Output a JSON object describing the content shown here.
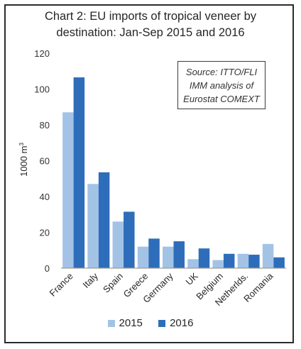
{
  "chart_data": {
    "type": "bar",
    "title": "Chart 2: EU imports of tropical veneer by destination: Jan-Sep 2015 and 2016",
    "title_lines": [
      "Chart 2: EU imports of tropical veneer by",
      "destination: Jan-Sep 2015 and 2016"
    ],
    "ylabel": "1000 m",
    "ylabel_superscript": "3",
    "xlabel": "",
    "ylim": [
      0,
      120
    ],
    "yticks": [
      0,
      20,
      40,
      60,
      80,
      100,
      120
    ],
    "categories": [
      "France",
      "Italy",
      "Spain",
      "Greece",
      "Germany",
      "UK",
      "Belgium",
      "Netherlds.",
      "Romania"
    ],
    "series": [
      {
        "name": "2015",
        "values": [
          87,
          47,
          26,
          12,
          12,
          5,
          4.5,
          8,
          13.5
        ]
      },
      {
        "name": "2016",
        "values": [
          106.5,
          53.5,
          31.5,
          16.5,
          15,
          11,
          8,
          7.5,
          6
        ]
      }
    ],
    "colors": [
      "#a3c3e6",
      "#2e6dba"
    ],
    "grid": false,
    "legend": "bottom",
    "annotation": {
      "lines": [
        "Source: ITTO/FLI",
        "IMM analysis of",
        "Eurostat COMEXT"
      ]
    }
  }
}
